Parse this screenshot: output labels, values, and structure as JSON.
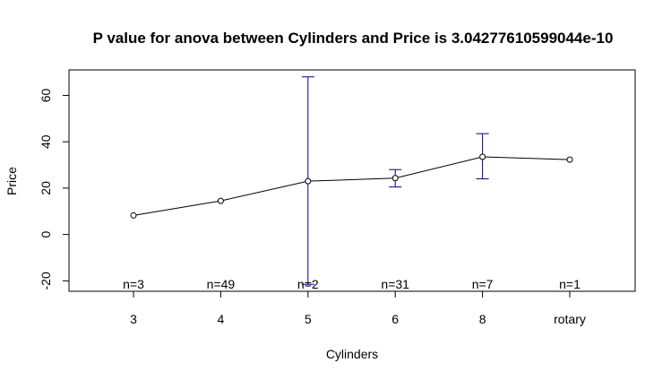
{
  "chart_data": {
    "type": "line",
    "title": "P value for anova between Cylinders  and  Price  is  3.04277610599044e-10",
    "xlabel": "Cylinders",
    "ylabel": "Price",
    "categories": [
      "3",
      "4",
      "5",
      "6",
      "8",
      "rotary"
    ],
    "series": [
      {
        "values": [
          8.2,
          14.5,
          23.0,
          24.3,
          33.5,
          32.3
        ]
      }
    ],
    "error_bars": [
      {
        "category": "5",
        "lower": -21.5,
        "upper": 68.0
      },
      {
        "category": "6",
        "lower": 20.5,
        "upper": 28.0
      },
      {
        "category": "8",
        "lower": 24.0,
        "upper": 43.5
      }
    ],
    "n_labels": [
      "n=3",
      "n=49",
      "n=2",
      "n=31",
      "n=7",
      "n=1"
    ],
    "yticks": [
      -20,
      0,
      20,
      40,
      60
    ],
    "ylim": [
      -24.5,
      71
    ],
    "grid": false,
    "legend": "none",
    "colors": {
      "line": "#000000",
      "error_bars": "#00008B",
      "axis": "#000000"
    }
  }
}
